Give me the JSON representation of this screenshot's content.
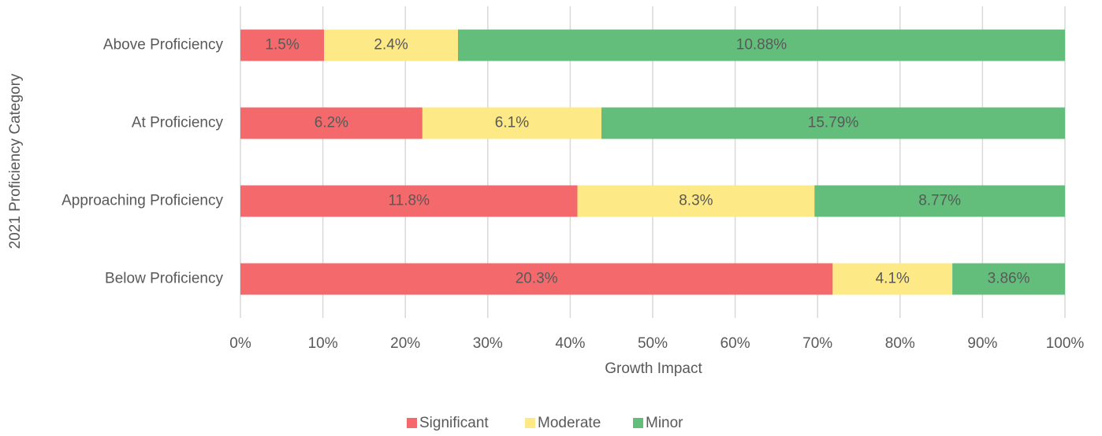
{
  "chart_data": {
    "type": "bar",
    "orientation": "horizontal",
    "stacking": "percent",
    "x_label": "Growth Impact",
    "y_label": "2021 Proficiency Category",
    "categories": [
      "Above Proficiency",
      "At Proficiency",
      "Approaching Proficiency",
      "Below Proficiency"
    ],
    "series": [
      {
        "name": "Significant",
        "color": "#f4696b",
        "values": [
          1.5,
          6.2,
          11.8,
          20.3
        ],
        "value_labels": [
          "1.5%",
          "6.2%",
          "11.8%",
          "20.3%"
        ]
      },
      {
        "name": "Moderate",
        "color": "#fde986",
        "values": [
          2.4,
          6.1,
          8.3,
          4.1
        ],
        "value_labels": [
          "2.4%",
          "6.1%",
          "8.3%",
          "4.1%"
        ]
      },
      {
        "name": "Minor",
        "color": "#63be7b",
        "values": [
          10.88,
          15.79,
          8.77,
          3.86
        ],
        "value_labels": [
          "10.88%",
          "15.79%",
          "8.77%",
          "3.86%"
        ]
      }
    ],
    "xlim": [
      0,
      100
    ],
    "xticks": [
      {
        "value": 0,
        "label": "0%"
      },
      {
        "value": 10,
        "label": "10%"
      },
      {
        "value": 20,
        "label": "20%"
      },
      {
        "value": 30,
        "label": "30%"
      },
      {
        "value": 40,
        "label": "40%"
      },
      {
        "value": 50,
        "label": "50%"
      },
      {
        "value": 60,
        "label": "60%"
      },
      {
        "value": 70,
        "label": "70%"
      },
      {
        "value": 80,
        "label": "80%"
      },
      {
        "value": 90,
        "label": "90%"
      },
      {
        "value": 100,
        "label": "100%"
      }
    ],
    "grid": true,
    "legend": "bottom"
  }
}
